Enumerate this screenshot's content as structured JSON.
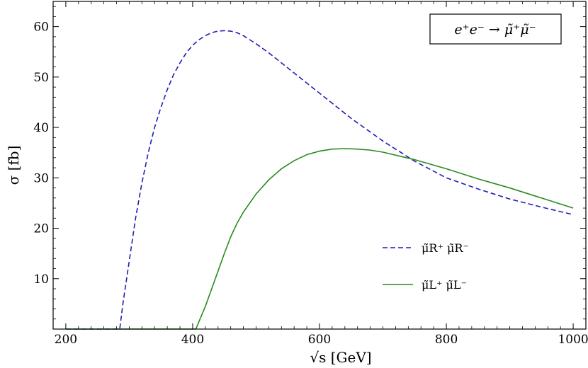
{
  "chart_data": {
    "type": "line",
    "title": "e⁺e⁻ → μ̃⁺μ̃⁻",
    "xlabel": "√s [GeV]",
    "ylabel": "σ [fb]",
    "xlim": [
      180,
      1020
    ],
    "ylim": [
      0,
      65
    ],
    "x_ticks": [
      200,
      400,
      600,
      800,
      1000
    ],
    "y_ticks": [
      10,
      20,
      30,
      40,
      50,
      60
    ],
    "x_tick_labels": [
      "200",
      "400",
      "600",
      "800",
      "1000"
    ],
    "y_tick_labels": [
      "10",
      "20",
      "30",
      "40",
      "50",
      "60"
    ],
    "grid": false,
    "legend_position": "lower-right",
    "series": [
      {
        "name": "μ̃R⁺ μ̃R⁻",
        "color": "#1f1fb4",
        "style": "dashed",
        "x": [
          200,
          285,
          290,
          300,
          310,
          320,
          330,
          340,
          350,
          360,
          370,
          380,
          390,
          400,
          410,
          420,
          430,
          440,
          450,
          460,
          470,
          480,
          500,
          520,
          550,
          600,
          650,
          700,
          750,
          800,
          850,
          900,
          950,
          1000
        ],
        "y": [
          0,
          0,
          5,
          13.5,
          22,
          29,
          35,
          40,
          44,
          47.5,
          50.5,
          52.8,
          54.8,
          56.3,
          57.4,
          58.2,
          58.8,
          59.1,
          59.2,
          59.1,
          58.8,
          58.2,
          56.6,
          54.8,
          51.8,
          46.8,
          41.8,
          37.3,
          33.3,
          30,
          27.8,
          25.8,
          24.2,
          22.7
        ]
      },
      {
        "name": "μ̃L⁺ μ̃L⁻",
        "color": "#2a8a1f",
        "style": "solid",
        "x": [
          200,
          405,
          410,
          420,
          430,
          440,
          450,
          460,
          470,
          480,
          500,
          520,
          540,
          560,
          580,
          600,
          620,
          640,
          660,
          680,
          700,
          750,
          800,
          850,
          900,
          950,
          1000
        ],
        "y": [
          0,
          0,
          1.5,
          4.5,
          8,
          11.5,
          15,
          18.3,
          21,
          23.2,
          26.8,
          29.6,
          31.8,
          33.4,
          34.6,
          35.3,
          35.7,
          35.8,
          35.7,
          35.5,
          35.1,
          33.6,
          31.8,
          29.8,
          28,
          26,
          24
        ]
      }
    ]
  }
}
